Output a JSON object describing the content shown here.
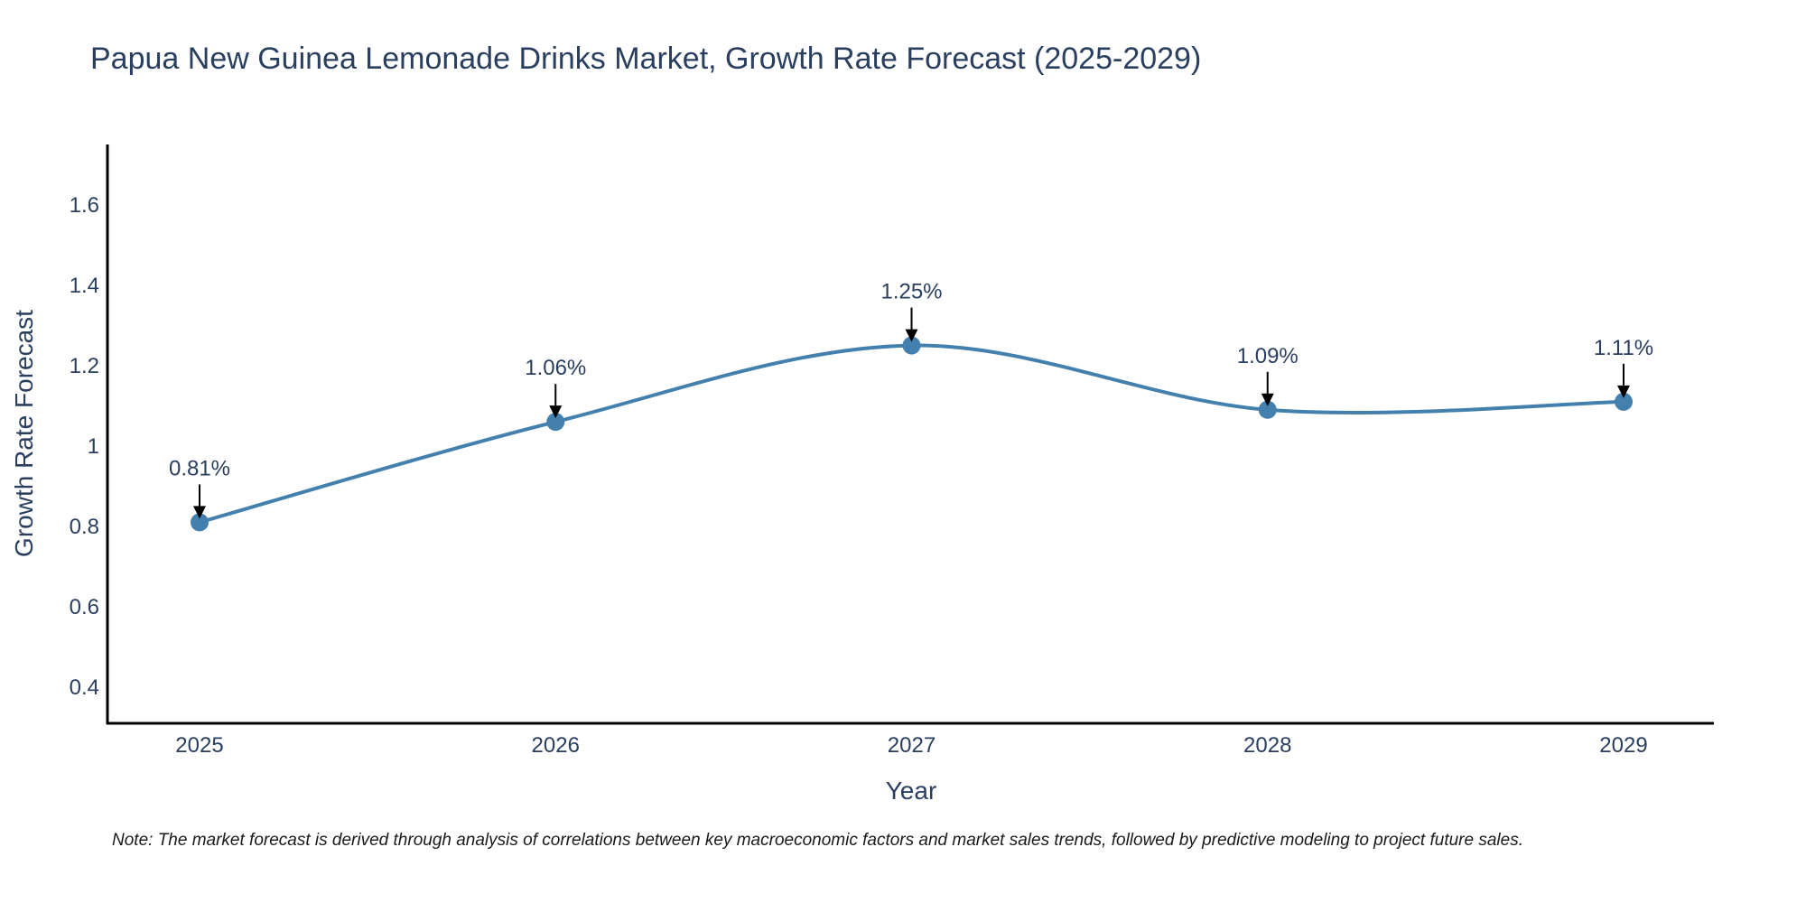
{
  "chart_data": {
    "type": "line",
    "title": "Papua New Guinea Lemonade Drinks Market, Growth Rate Forecast (2025-2029)",
    "xlabel": "Year",
    "ylabel": "Growth Rate Forecast",
    "categories": [
      "2025",
      "2026",
      "2027",
      "2028",
      "2029"
    ],
    "series": [
      {
        "name": "Growth Rate Forecast",
        "values": [
          0.81,
          1.06,
          1.25,
          1.09,
          1.11
        ],
        "labels": [
          "0.81%",
          "1.06%",
          "1.25%",
          "1.09%",
          "1.11%"
        ]
      }
    ],
    "yticks": [
      "0.4",
      "0.6",
      "0.8",
      "1",
      "1.2",
      "1.4",
      "1.6"
    ],
    "ytick_values": [
      0.4,
      0.6,
      0.8,
      1.0,
      1.2,
      1.4,
      1.6
    ],
    "ylim": [
      0.31,
      1.75
    ],
    "grid": false,
    "line_color": "#4380ad",
    "marker_color": "#4380ad"
  },
  "note": "Note: The market forecast is derived through analysis of correlations between key macroeconomic factors and market sales trends, followed by predictive modeling to project future sales."
}
